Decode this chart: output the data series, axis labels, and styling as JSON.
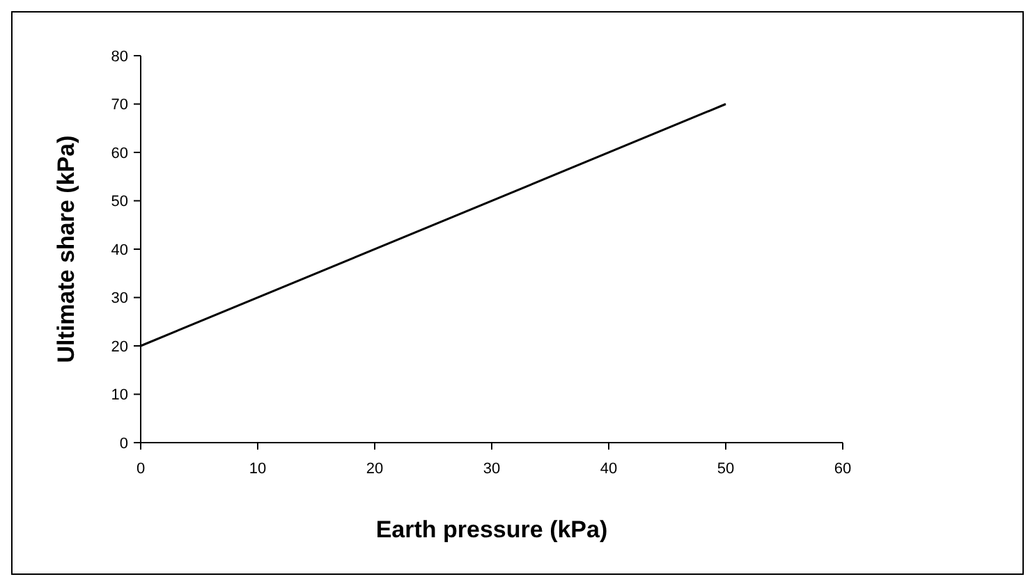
{
  "chart_data": {
    "type": "line",
    "xlabel": "Earth pressure (kPa)",
    "ylabel": "Ultimate share (kPa)",
    "x": [
      0,
      50
    ],
    "series": [
      {
        "color": "#000000",
        "values": [
          20,
          70
        ]
      }
    ],
    "xlim": [
      0,
      60
    ],
    "xticks": [
      0,
      10,
      20,
      30,
      40,
      50,
      60
    ],
    "ylim": [
      0,
      80
    ],
    "yticks": [
      0,
      10,
      20,
      30,
      40,
      50,
      60,
      70,
      80
    ],
    "grid": false,
    "marker": "none",
    "line_style": "solid"
  }
}
